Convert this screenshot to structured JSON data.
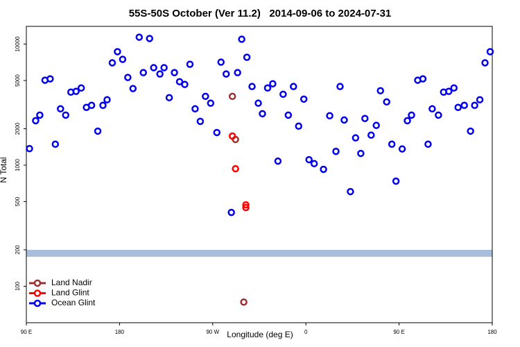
{
  "chart_data": {
    "type": "scatter",
    "title": "55S-50S October (Ver 11.2)   2014-09-06 to 2024-07-31",
    "x_label": "Longitude (deg E)",
    "y_label": "N Total",
    "log_y": true,
    "legend": "bottom-left",
    "xlim": [
      90,
      540
    ],
    "xticks": [
      {
        "value": 90,
        "label": "90 E"
      },
      180,
      {
        "value": 270,
        "label": "90 W"
      },
      {
        "value": 360,
        "label": "0"
      },
      {
        "value": 450,
        "label": "90 E"
      },
      {
        "value": 540,
        "label": "180"
      }
    ],
    "ylim": [
      50,
      14000
    ],
    "yticks": [
      100,
      200,
      500,
      1000,
      2000,
      5000,
      10000
    ],
    "series": [
      {
        "name": "Ocean Glint",
        "color": "#0000ee",
        "x": [
          93,
          99,
          103,
          108,
          113,
          118,
          123,
          128,
          133,
          138,
          143,
          148,
          153,
          159,
          164,
          168,
          173,
          178,
          183,
          188,
          193,
          199,
          203,
          209,
          213,
          219,
          223,
          228,
          233,
          238,
          243,
          248,
          253,
          258,
          263,
          268,
          274,
          278,
          283,
          288,
          294,
          298,
          303,
          308,
          314,
          318,
          323,
          328,
          333,
          338,
          343,
          348,
          353,
          358,
          363,
          368,
          377,
          383,
          389,
          393,
          397,
          403,
          408,
          413,
          417,
          423,
          428,
          432,
          438,
          443,
          447,
          453,
          458,
          462,
          468,
          473,
          478,
          482,
          488,
          493,
          498,
          503,
          507,
          513,
          519,
          523,
          528,
          533,
          538
        ],
        "y": [
          1370,
          2330,
          2590,
          5030,
          5160,
          1490,
          2920,
          2590,
          4010,
          4070,
          4340,
          3000,
          3120,
          1910,
          3120,
          3470,
          7000,
          8650,
          7480,
          5300,
          4290,
          11400,
          5810,
          11120,
          6380,
          5660,
          6380,
          3610,
          5810,
          4890,
          4640,
          6810,
          2920,
          2300,
          3700,
          3250,
          1860,
          7090,
          5660,
          407,
          5810,
          10960,
          7780,
          4460,
          3250,
          2660,
          4340,
          4700,
          1080,
          3850,
          2590,
          4460,
          2100,
          3510,
          1110,
          1030,
          924,
          2560,
          1300,
          4460,
          2360,
          605,
          1680,
          1250,
          2430,
          1770,
          2130,
          4120,
          3330,
          1490,
          738,
          1360,
          2330,
          2590,
          5030,
          5160,
          1490,
          2920,
          2590,
          4010,
          4070,
          4340,
          3000,
          3120,
          1910,
          3120,
          3470,
          7000,
          8650
        ]
      },
      {
        "name": "Land Nadir",
        "color": "#9b3030",
        "x": [
          289,
          292,
          300
        ],
        "y": [
          3700,
          1630,
          74
        ]
      },
      {
        "name": "Land Glint",
        "color": "#ff0000",
        "x": [
          289,
          292,
          302,
          302
        ],
        "y": [
          1740,
          935,
          470,
          446
        ]
      }
    ]
  }
}
